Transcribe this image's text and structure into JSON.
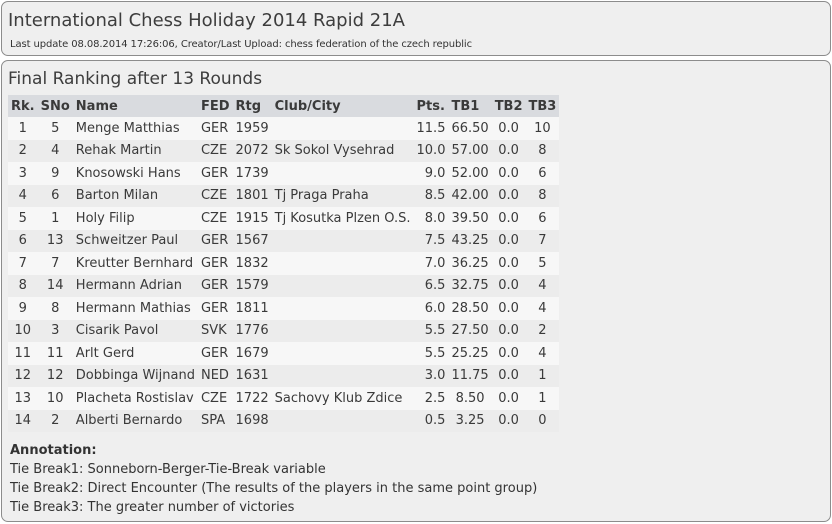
{
  "header": {
    "title": "International Chess Holiday 2014 Rapid 21A",
    "subtitle": "Last update 08.08.2014 17:26:06, Creator/Last Upload: chess federation of the czech republic"
  },
  "ranking": {
    "title": "Final Ranking after 13 Rounds",
    "columns": [
      "Rk.",
      "SNo",
      "Name",
      "FED",
      "Rtg",
      "Club/City",
      "Pts.",
      "TB1",
      "TB2",
      "TB3"
    ],
    "rows": [
      [
        "1",
        "5",
        "Menge Matthias",
        "GER",
        "1959",
        "",
        "11.5",
        "66.50",
        "0.0",
        "10"
      ],
      [
        "2",
        "4",
        "Rehak Martin",
        "CZE",
        "2072",
        "Sk Sokol Vysehrad",
        "10.0",
        "57.00",
        "0.0",
        "8"
      ],
      [
        "3",
        "9",
        "Knosowski Hans",
        "GER",
        "1739",
        "",
        "9.0",
        "52.00",
        "0.0",
        "6"
      ],
      [
        "4",
        "6",
        "Barton Milan",
        "CZE",
        "1801",
        "Tj Praga Praha",
        "8.5",
        "42.00",
        "0.0",
        "8"
      ],
      [
        "5",
        "1",
        "Holy Filip",
        "CZE",
        "1915",
        "Tj Kosutka Plzen O.S.",
        "8.0",
        "39.50",
        "0.0",
        "6"
      ],
      [
        "6",
        "13",
        "Schweitzer Paul",
        "GER",
        "1567",
        "",
        "7.5",
        "43.25",
        "0.0",
        "7"
      ],
      [
        "7",
        "7",
        "Kreutter Bernhard",
        "GER",
        "1832",
        "",
        "7.0",
        "36.25",
        "0.0",
        "5"
      ],
      [
        "8",
        "14",
        "Hermann Adrian",
        "GER",
        "1579",
        "",
        "6.5",
        "32.75",
        "0.0",
        "4"
      ],
      [
        "9",
        "8",
        "Hermann Mathias",
        "GER",
        "1811",
        "",
        "6.0",
        "28.50",
        "0.0",
        "4"
      ],
      [
        "10",
        "3",
        "Cisarik Pavol",
        "SVK",
        "1776",
        "",
        "5.5",
        "27.50",
        "0.0",
        "2"
      ],
      [
        "11",
        "11",
        "Arlt Gerd",
        "GER",
        "1679",
        "",
        "5.5",
        "25.25",
        "0.0",
        "4"
      ],
      [
        "12",
        "12",
        "Dobbinga Wijnand",
        "NED",
        "1631",
        "",
        "3.0",
        "11.75",
        "0.0",
        "1"
      ],
      [
        "13",
        "10",
        "Placheta Rostislav",
        "CZE",
        "1722",
        "Sachovy Klub Zdice",
        "2.5",
        "8.50",
        "0.0",
        "1"
      ],
      [
        "14",
        "2",
        "Alberti Bernardo",
        "SPA",
        "1698",
        "",
        "0.5",
        "3.25",
        "0.0",
        "0"
      ]
    ]
  },
  "annotation": {
    "heading": "Annotation:",
    "lines": [
      "Tie Break1: Sonneborn-Berger-Tie-Break variable",
      "Tie Break2: Direct Encounter (The results of the players in the same point group)",
      "Tie Break3: The greater number of victories"
    ]
  }
}
